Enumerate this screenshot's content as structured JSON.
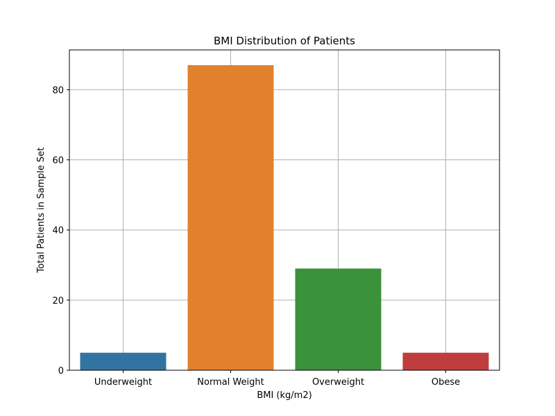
{
  "chart_data": {
    "type": "bar",
    "title": "BMI Distribution of Patients",
    "xlabel": "BMI (kg/m2)",
    "ylabel": "Total Patients in Sample Set",
    "categories": [
      "Underweight",
      "Normal Weight",
      "Overweight",
      "Obese"
    ],
    "values": [
      5,
      87,
      29,
      5
    ],
    "colors": [
      "#3274a1",
      "#e1812c",
      "#3a923a",
      "#c03d3e"
    ],
    "ylim": [
      0,
      91.35
    ],
    "yticks": [
      0,
      20,
      40,
      60,
      80
    ],
    "grid": true
  }
}
